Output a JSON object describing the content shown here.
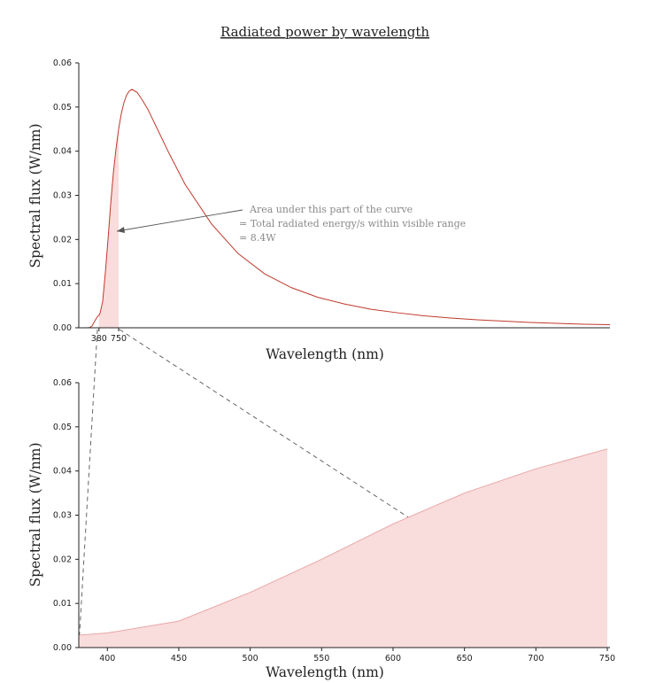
{
  "chart_data": [
    {
      "type": "area",
      "title": "Radiated power by wavelength",
      "xlabel": "Wavelength (nm)",
      "ylabel": "Spectral flux (W/nm)",
      "ylim": [
        0,
        0.06
      ],
      "yticks": [
        "0.00",
        "0.01",
        "0.02",
        "0.03",
        "0.04",
        "0.05",
        "0.06"
      ],
      "xticks": [
        "380",
        "750"
      ],
      "x_scale": "linear",
      "grid": false,
      "series": [
        {
          "color": "#c0392b",
          "x": [
            0,
            100,
            150,
            200,
            250,
            300,
            350,
            380,
            400,
            450,
            500,
            550,
            600,
            650,
            700,
            750,
            800,
            850,
            900,
            950,
            1000,
            1100,
            1200,
            1300,
            1400,
            1500,
            1700,
            2000,
            2500,
            3000,
            3500,
            4000,
            4500,
            5000,
            5500,
            6000,
            6500,
            7000,
            7500,
            8000,
            8500,
            9000,
            9500,
            10000
          ],
          "y": [
            0,
            0,
            2e-06,
            4e-05,
            0.0004,
            0.0015,
            0.0025,
            0.0028,
            0.0033,
            0.006,
            0.0125,
            0.02,
            0.028,
            0.035,
            0.0405,
            0.045,
            0.0485,
            0.051,
            0.0527,
            0.0536,
            0.054,
            0.0533,
            0.0515,
            0.0495,
            0.047,
            0.0445,
            0.0395,
            0.0325,
            0.0235,
            0.0168,
            0.0122,
            0.0091,
            0.0069,
            0.0054,
            0.0042,
            0.0034,
            0.0027,
            0.0022,
            0.0018,
            0.0015,
            0.0012,
            0.001,
            0.0008,
            0.0007
          ]
        }
      ],
      "shaded_region": {
        "x_start": 380,
        "x_end": 750,
        "color": "#f9dcdc"
      },
      "annotation": [
        "Area under this part of the curve",
        "= Total radiated energy/s within visible range",
        "= 8.4W"
      ]
    },
    {
      "type": "area",
      "xlabel": "Wavelength (nm)",
      "ylabel": "Spectral flux (W/nm)",
      "xlim": [
        380,
        750
      ],
      "ylim": [
        0,
        0.06
      ],
      "yticks": [
        "0.00",
        "0.01",
        "0.02",
        "0.03",
        "0.04",
        "0.05",
        "0.06"
      ],
      "xticks": [
        "400",
        "450",
        "500",
        "550",
        "600",
        "650",
        "700",
        "750"
      ],
      "grid": false,
      "series": [
        {
          "color": "#e8a8a8",
          "fill": "#f9dcdc",
          "x": [
            380,
            400,
            450,
            500,
            550,
            600,
            650,
            700,
            750
          ],
          "y": [
            0.0028,
            0.0033,
            0.006,
            0.0125,
            0.02,
            0.028,
            0.035,
            0.0405,
            0.045
          ]
        }
      ]
    }
  ]
}
